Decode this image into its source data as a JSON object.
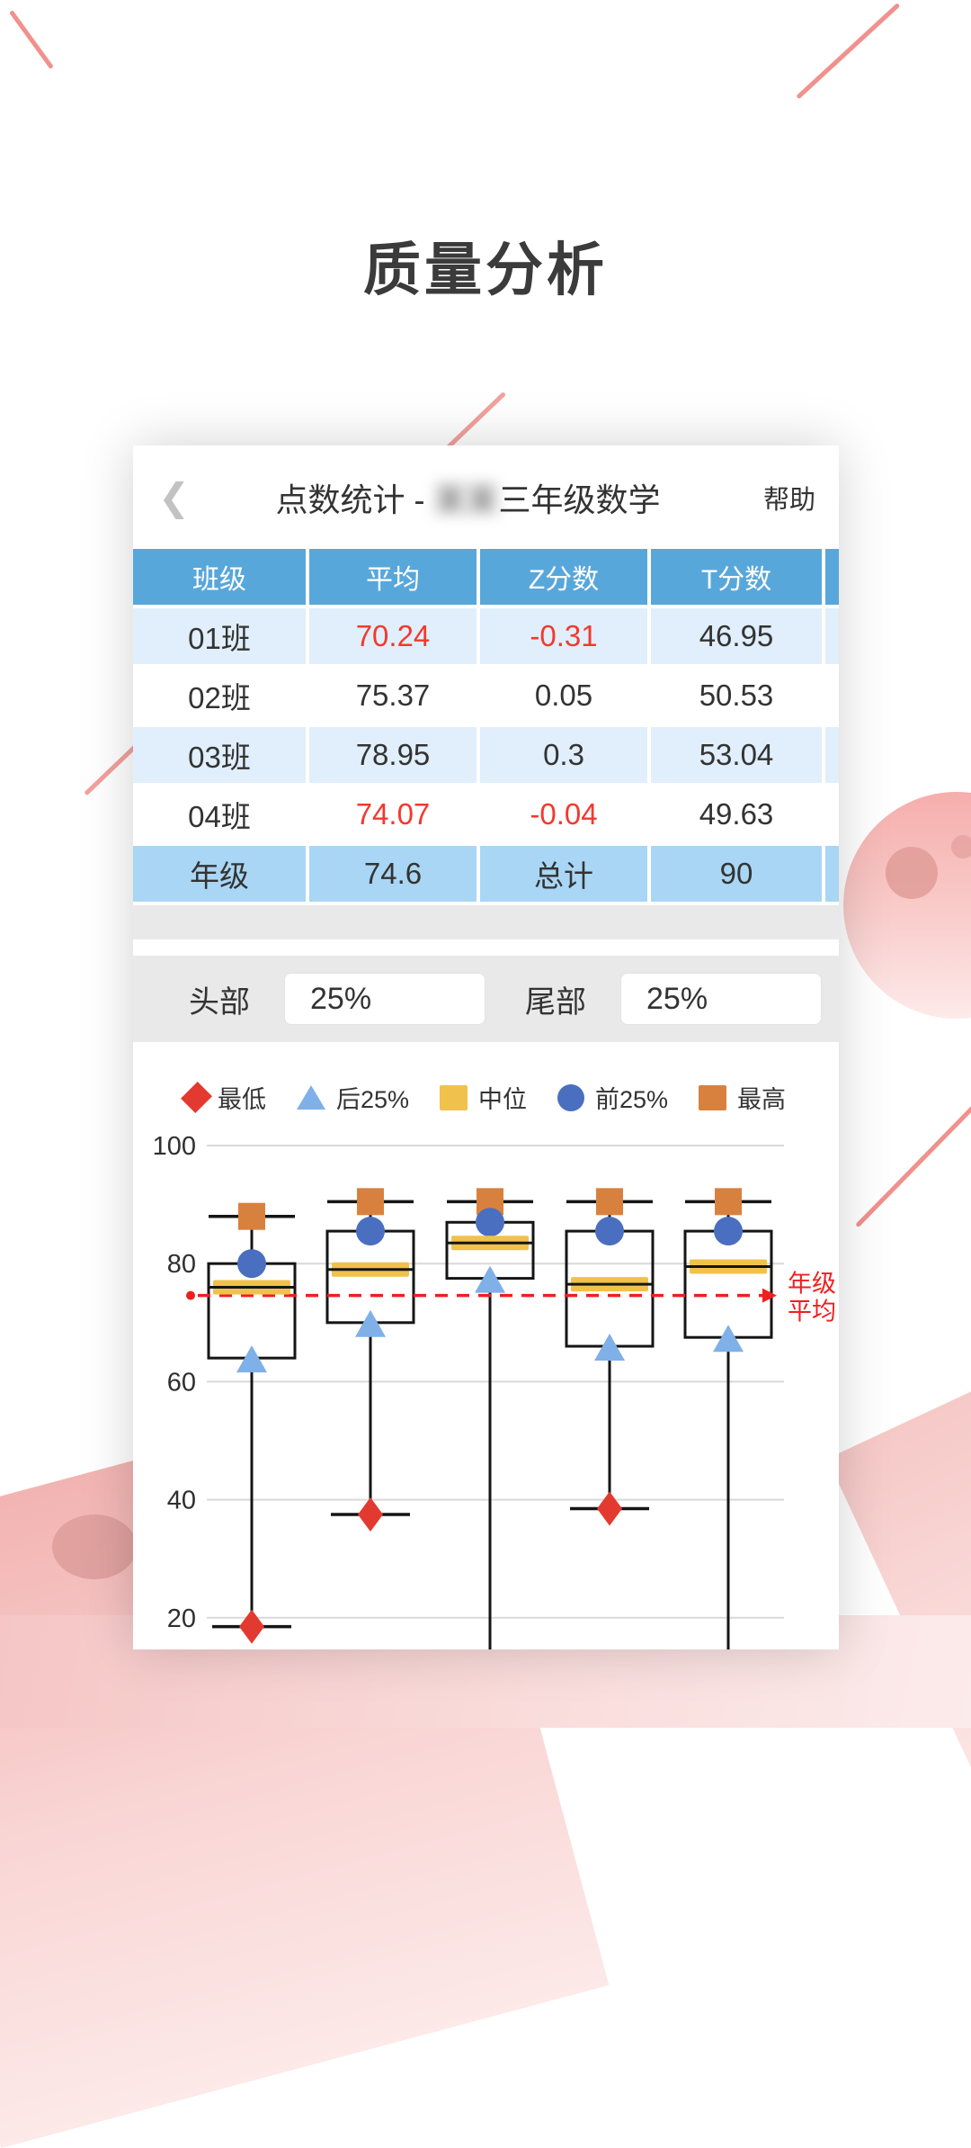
{
  "page_title": "质量分析",
  "card": {
    "back_icon": "❮",
    "title_prefix": "点数统计 - ",
    "title_masked": "某某",
    "title_suffix": "三年级数学",
    "help_label": "帮助"
  },
  "table": {
    "headers": [
      "班级",
      "平均",
      "Z分数",
      "T分数",
      ""
    ],
    "rows": [
      {
        "cells": [
          {
            "t": "01班"
          },
          {
            "t": "70.24",
            "red": true
          },
          {
            "t": "-0.31",
            "red": true
          },
          {
            "t": "46.95"
          },
          {
            "t": ""
          }
        ]
      },
      {
        "cells": [
          {
            "t": "02班"
          },
          {
            "t": "75.37"
          },
          {
            "t": "0.05"
          },
          {
            "t": "50.53"
          },
          {
            "t": ""
          }
        ]
      },
      {
        "cells": [
          {
            "t": "03班"
          },
          {
            "t": "78.95"
          },
          {
            "t": "0.3"
          },
          {
            "t": "53.04"
          },
          {
            "t": ""
          }
        ]
      },
      {
        "cells": [
          {
            "t": "04班"
          },
          {
            "t": "74.07",
            "red": true
          },
          {
            "t": "-0.04",
            "red": true
          },
          {
            "t": "49.63"
          },
          {
            "t": ""
          }
        ]
      }
    ],
    "footer": {
      "cells": [
        {
          "t": "年级"
        },
        {
          "t": "74.6"
        },
        {
          "t": "总计"
        },
        {
          "t": "90"
        },
        {
          "t": ""
        }
      ]
    }
  },
  "filters": {
    "head_label": "头部",
    "head_value": "25%",
    "tail_label": "尾部",
    "tail_value": "25%"
  },
  "chart_data": {
    "type": "boxplot",
    "legend": [
      {
        "label": "最低",
        "marker": "diamond",
        "color": "#e23a31"
      },
      {
        "label": "后25%",
        "marker": "triangle-up",
        "color": "#7fb0e8"
      },
      {
        "label": "中位",
        "marker": "square",
        "color": "#f0c24b"
      },
      {
        "label": "前25%",
        "marker": "circle",
        "color": "#4a6fc0"
      },
      {
        "label": "最高",
        "marker": "square",
        "color": "#d8813e"
      }
    ],
    "yticks": [
      100,
      80,
      60,
      40,
      20
    ],
    "ylim_visible": [
      15,
      100
    ],
    "grid": true,
    "grade_mean": {
      "value": 74.6,
      "label_line1": "年级",
      "label_line2": "平均"
    },
    "boxes": [
      {
        "max": 88,
        "q3": 80,
        "median": 76,
        "q1": 64,
        "min": 18.5,
        "min_visible": true
      },
      {
        "max": 90.5,
        "q3": 85.5,
        "median": 79,
        "q1": 70,
        "min": 37.5,
        "min_visible": true
      },
      {
        "max": 90.5,
        "q3": 87,
        "median": 83.5,
        "q1": 77.5,
        "min": null,
        "min_visible": false
      },
      {
        "max": 90.5,
        "q3": 85.5,
        "median": 76.5,
        "q1": 66,
        "min": 38.5,
        "min_visible": true
      },
      {
        "max": 90.5,
        "q3": 85.5,
        "median": 79.5,
        "q1": 67.5,
        "min": null,
        "min_visible": false
      }
    ]
  },
  "colors": {
    "table_header_blue": "#58a7db",
    "row_alt_blue": "#e0effb",
    "footer_row_blue": "#a9d6f4",
    "negative_red": "#f4382e",
    "marker_min": "#e23a31",
    "marker_low25": "#7fb0e8",
    "marker_median": "#f0c24b",
    "marker_top25": "#4a6fc0",
    "marker_max": "#d8813e",
    "mean_line_red": "#f01f1f",
    "deco_pink": "#f0918d",
    "box_stroke": "#151515",
    "gridline": "#d9d9d9"
  }
}
